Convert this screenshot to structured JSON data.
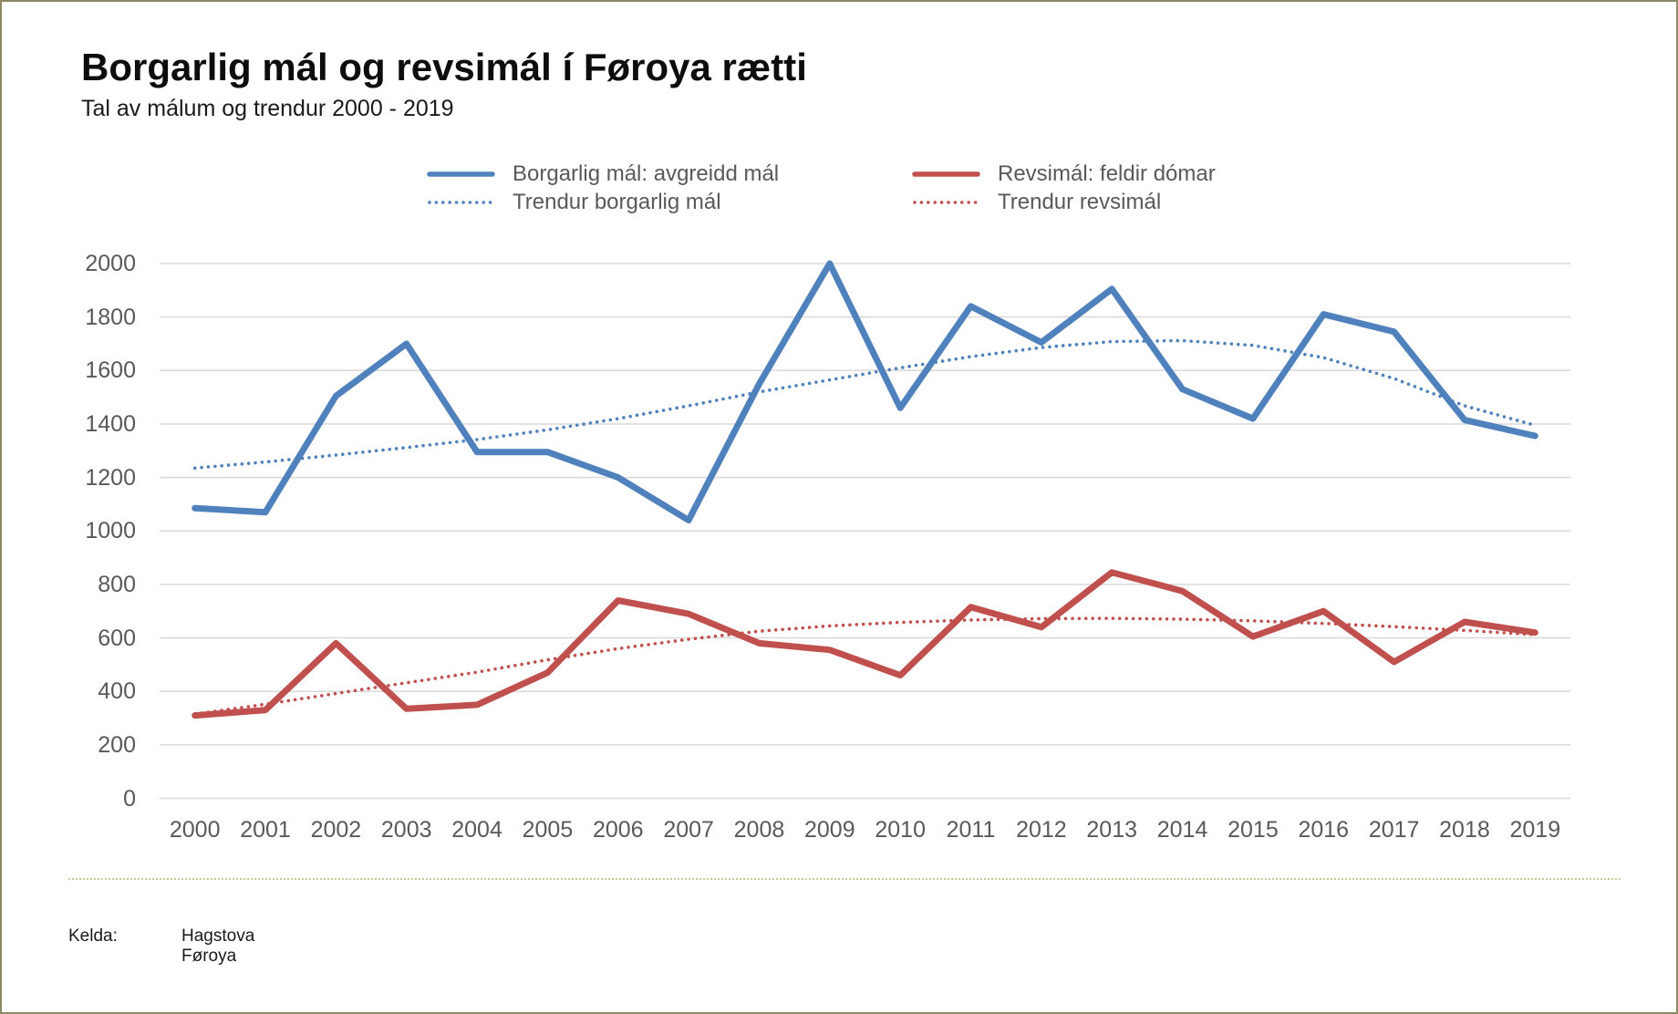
{
  "title": "Borgarlig mál og revsimál í Føroya rætti",
  "subtitle": "Tal av málum og trendur 2000 - 2019",
  "source": {
    "label": "Kelda:",
    "value": "Hagstova Føroya"
  },
  "colors": {
    "borgarlig": "#4f81bd",
    "revsimal": "#c0504d",
    "gridline": "#d9d9d9",
    "axis_text": "#595959",
    "frame_border": "#8e8962",
    "separator": "#cfc8a6"
  },
  "legend": [
    {
      "id": "borgarlig",
      "label": "Borgarlig mál: avgreidd mál",
      "style": "solid",
      "color": "#4f81bd",
      "col": 0,
      "row": 0
    },
    {
      "id": "revsimal",
      "label": "Revsimál: feldir dómar",
      "style": "solid",
      "color": "#c0504d",
      "col": 1,
      "row": 0
    },
    {
      "id": "trend_borgarlig",
      "label": "Trendur borgarlig mál",
      "style": "dotted",
      "color": "#4f81bd",
      "col": 0,
      "row": 1
    },
    {
      "id": "trend_revsimal",
      "label": "Trendur revsimál",
      "style": "dotted",
      "color": "#c0504d",
      "col": 1,
      "row": 1
    }
  ],
  "chart_data": {
    "type": "line",
    "title": "Borgarlig mál og revsimál í Føroya rætti",
    "subtitle": "Tal av málum og trendur 2000 - 2019",
    "categories": [
      "2000",
      "2001",
      "2002",
      "2003",
      "2004",
      "2005",
      "2006",
      "2007",
      "2008",
      "2009",
      "2010",
      "2011",
      "2012",
      "2013",
      "2014",
      "2015",
      "2016",
      "2017",
      "2018",
      "2019"
    ],
    "ylim": [
      0,
      2000
    ],
    "ytick_step": 200,
    "grid": true,
    "legend_position": "top",
    "series": [
      {
        "name": "Borgarlig mál: avgreidd mál",
        "style": "solid",
        "color": "#4f81bd",
        "values": [
          1085,
          1070,
          1505,
          1700,
          1295,
          1295,
          1200,
          1040,
          1550,
          2000,
          1460,
          1840,
          1705,
          1905,
          1530,
          1420,
          1810,
          1745,
          1415,
          1355
        ]
      },
      {
        "name": "Revsimál: feldir dómar",
        "style": "solid",
        "color": "#c0504d",
        "values": [
          310,
          330,
          580,
          335,
          350,
          470,
          740,
          690,
          580,
          555,
          460,
          715,
          640,
          845,
          775,
          605,
          700,
          510,
          660,
          620
        ]
      },
      {
        "name": "Trendur borgarlig mál",
        "style": "dotted",
        "color": "#4f81bd",
        "values": [
          1235,
          1258,
          1284,
          1312,
          1342,
          1378,
          1420,
          1468,
          1520,
          1565,
          1610,
          1652,
          1686,
          1708,
          1712,
          1694,
          1648,
          1570,
          1468,
          1395
        ]
      },
      {
        "name": "Trendur revsimál",
        "style": "dotted",
        "color": "#c0504d",
        "values": [
          315,
          352,
          392,
          432,
          472,
          518,
          560,
          595,
          625,
          645,
          658,
          667,
          672,
          673,
          670,
          664,
          654,
          642,
          628,
          612
        ]
      }
    ]
  }
}
